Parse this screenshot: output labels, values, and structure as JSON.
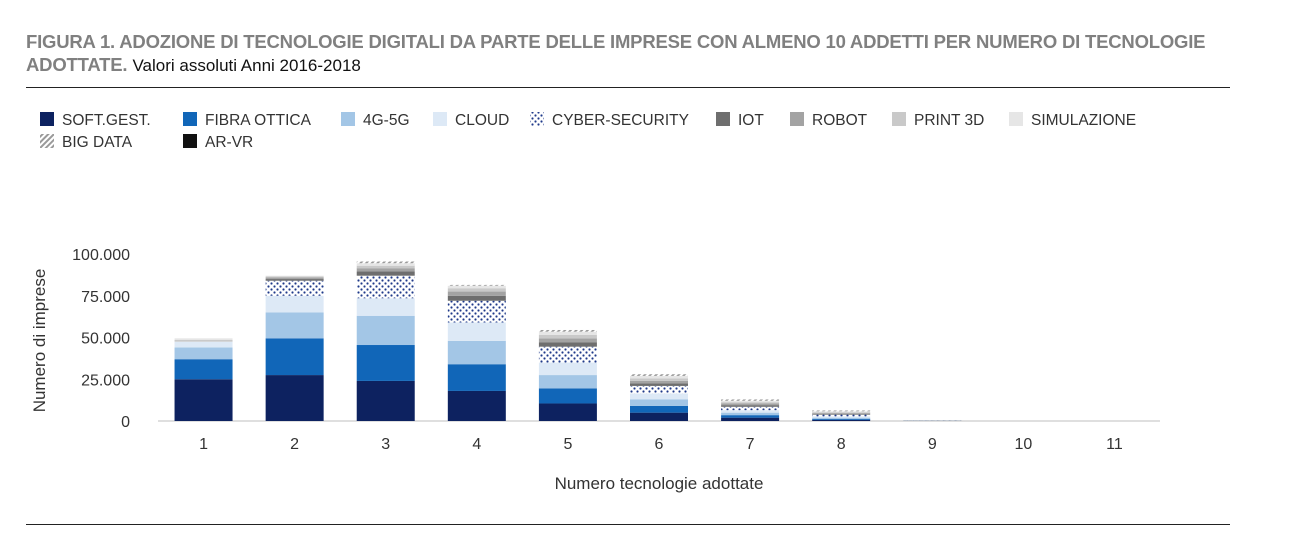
{
  "title": {
    "bold": "FIGURA 1. ADOZIONE DI TECNOLOGIE DIGITALI DA PARTE DELLE IMPRESE CON ALMENO 10 ADDETTI PER NUMERO DI TECNOLOGIE ADOTTATE.",
    "sub": "Valori assoluti Anni 2016-2018"
  },
  "chart_data": {
    "type": "bar",
    "stacked": true,
    "xlabel": "Numero tecnologie adottate",
    "ylabel": "Numero di imprese",
    "ylim": [
      0,
      100000
    ],
    "yticks": [
      "0",
      "25.000",
      "50.000",
      "75.000",
      "100.000"
    ],
    "ytick_values": [
      0,
      25000,
      50000,
      75000,
      100000
    ],
    "categories": [
      "1",
      "2",
      "3",
      "4",
      "5",
      "6",
      "7",
      "8",
      "9",
      "10",
      "11"
    ],
    "grid": false,
    "legend_position": "top-left",
    "series": [
      {
        "name": "SOFT.GEST.",
        "color": "#0d2260",
        "pattern": "solid",
        "values": [
          25000,
          27500,
          24000,
          18000,
          10500,
          5000,
          2000,
          700,
          50,
          0,
          0
        ]
      },
      {
        "name": "FIBRA OTTICA",
        "color": "#1166b8",
        "pattern": "solid",
        "values": [
          12000,
          22000,
          21500,
          16000,
          9000,
          4000,
          1500,
          600,
          50,
          0,
          0
        ]
      },
      {
        "name": "4G-5G",
        "color": "#a3c6e6",
        "pattern": "solid",
        "values": [
          7000,
          15500,
          17500,
          14000,
          8000,
          4000,
          1500,
          700,
          50,
          0,
          0
        ]
      },
      {
        "name": "CLOUD",
        "color": "#dde9f6",
        "pattern": "solid",
        "values": [
          3500,
          10000,
          10500,
          11000,
          7500,
          3500,
          1500,
          800,
          50,
          0,
          0
        ]
      },
      {
        "name": "CYBER-SECURITY",
        "color": "#1f3a8a",
        "pattern": "dots",
        "values": [
          0,
          9000,
          13500,
          13000,
          9500,
          4500,
          2000,
          1000,
          50,
          0,
          0
        ]
      },
      {
        "name": "IOT",
        "color": "#6e6e6e",
        "pattern": "solid",
        "values": [
          0,
          1000,
          2500,
          3000,
          2500,
          1500,
          1000,
          500,
          50,
          0,
          0
        ]
      },
      {
        "name": "ROBOT",
        "color": "#a3a3a3",
        "pattern": "solid",
        "values": [
          0,
          1000,
          2000,
          2500,
          2500,
          1500,
          1000,
          500,
          50,
          0,
          0
        ]
      },
      {
        "name": "PRINT 3D",
        "color": "#c9c9c9",
        "pattern": "solid",
        "values": [
          1000,
          500,
          1500,
          2000,
          2000,
          1500,
          800,
          500,
          50,
          0,
          0
        ]
      },
      {
        "name": "SIMULAZIONE",
        "color": "#e6e6e6",
        "pattern": "solid",
        "values": [
          1000,
          500,
          1500,
          1500,
          2000,
          1500,
          800,
          500,
          50,
          0,
          0
        ]
      },
      {
        "name": "BIG DATA",
        "color": "#9a9a9a",
        "pattern": "hatch",
        "values": [
          0,
          0,
          1000,
          500,
          1000,
          1000,
          800,
          500,
          50,
          0,
          0
        ]
      },
      {
        "name": "AR-VR",
        "color": "#111111",
        "pattern": "solid",
        "values": [
          0,
          0,
          0,
          0,
          0,
          0,
          0,
          0,
          0,
          0,
          0
        ]
      }
    ]
  }
}
